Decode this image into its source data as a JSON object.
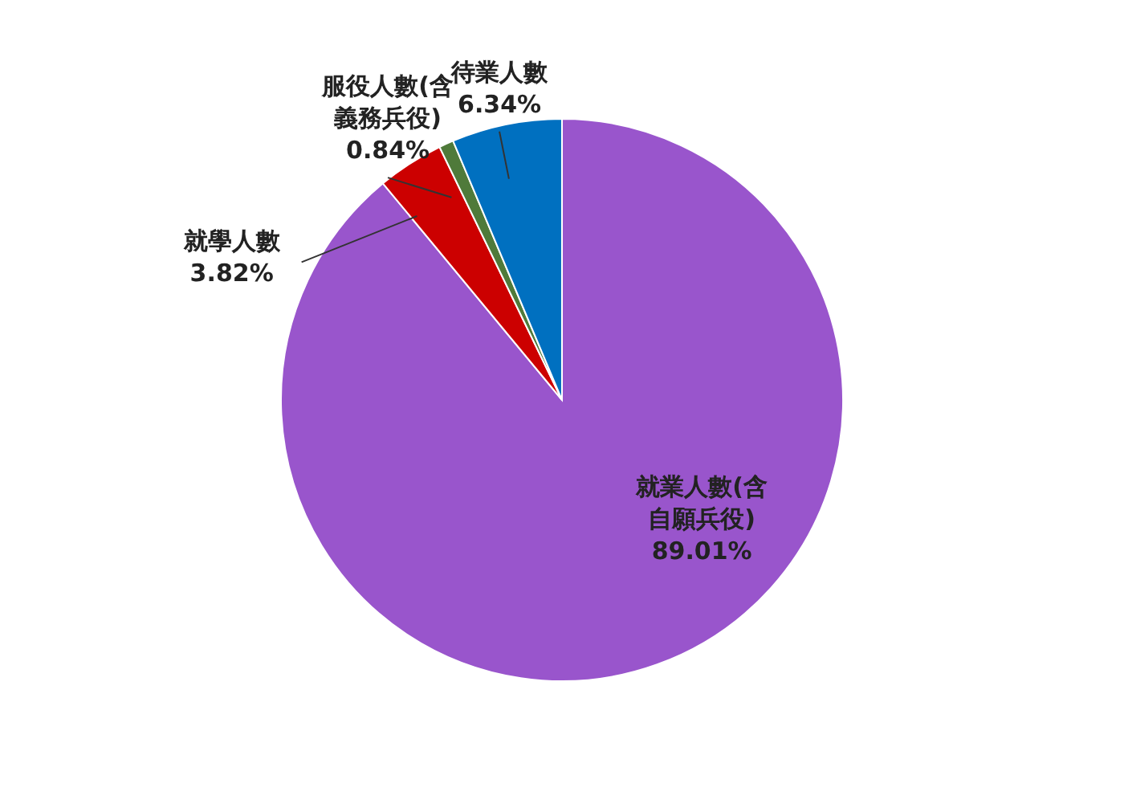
{
  "chart_data": {
    "type": "pie",
    "categories": [
      "就業人數(含自願兵役)",
      "就學人數",
      "服役人數(含義務兵役)",
      "待業人數"
    ],
    "values": [
      89.01,
      3.82,
      0.84,
      6.34
    ],
    "colors": [
      "#9955cc",
      "#cc0000",
      "#4f7a3a",
      "#0070c0"
    ],
    "value_labels": [
      "89.01%",
      "3.82%",
      "0.84%",
      "6.34%"
    ]
  }
}
